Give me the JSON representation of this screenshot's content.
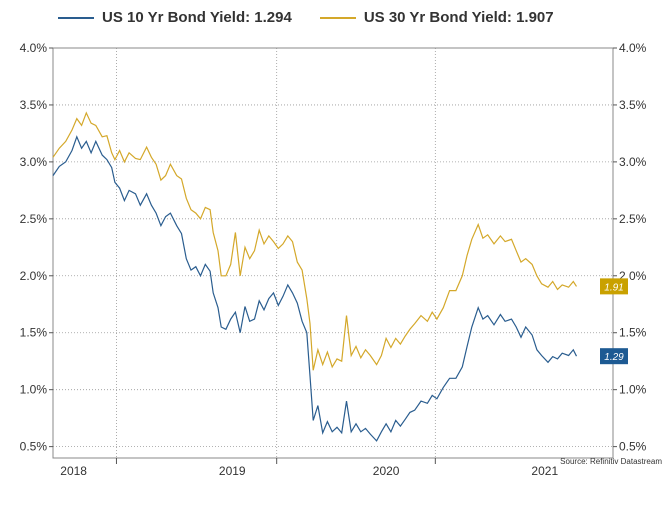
{
  "legend": {
    "s1_label": "US 10 Yr Bond Yield: 1.294",
    "s2_label": "US 30 Yr Bond Yield: 1.907"
  },
  "source_note": "Source: Refinitiv Datastream",
  "colors": {
    "s1": "#2a5d8f",
    "s2": "#d4a82a",
    "s1_tag": "#1d5a93",
    "s2_tag": "#c9a100",
    "grid": "#999999"
  },
  "chart_data": {
    "type": "line",
    "title": "",
    "xlabel": "",
    "ylabel": "",
    "x_tick_labels": [
      "2018",
      "2019",
      "2020",
      "2021"
    ],
    "y_tick_labels": [
      "4.0%",
      "3.5%",
      "3.0%",
      "2.5%",
      "2.0%",
      "1.5%",
      "1.0%",
      "0.5%"
    ],
    "y_tick_values": [
      4.0,
      3.5,
      3.0,
      2.5,
      2.0,
      1.5,
      1.0,
      0.5
    ],
    "ylim": [
      0.5,
      4.0
    ],
    "xlim": [
      2017.92,
      2021.45
    ],
    "year_boundaries": [
      2018.0,
      2019.0,
      2020.0,
      2021.0
    ],
    "grid": true,
    "legend_position": "top",
    "series": [
      {
        "name": "US 10 Yr Bond Yield: 1.294",
        "end_tag": "1.29",
        "points": [
          [
            2017.92,
            2.88
          ],
          [
            2017.96,
            2.96
          ],
          [
            2018.0,
            3.0
          ],
          [
            2018.04,
            3.1
          ],
          [
            2018.07,
            3.22
          ],
          [
            2018.1,
            3.12
          ],
          [
            2018.13,
            3.18
          ],
          [
            2018.16,
            3.08
          ],
          [
            2018.19,
            3.18
          ],
          [
            2018.23,
            3.06
          ],
          [
            2018.26,
            3.02
          ],
          [
            2018.29,
            2.95
          ],
          [
            2018.31,
            2.82
          ],
          [
            2018.34,
            2.77
          ],
          [
            2018.37,
            2.66
          ],
          [
            2018.4,
            2.75
          ],
          [
            2018.44,
            2.72
          ],
          [
            2018.47,
            2.62
          ],
          [
            2018.51,
            2.72
          ],
          [
            2018.54,
            2.62
          ],
          [
            2018.57,
            2.55
          ],
          [
            2018.6,
            2.44
          ],
          [
            2018.63,
            2.52
          ],
          [
            2018.66,
            2.55
          ],
          [
            2018.7,
            2.44
          ],
          [
            2018.73,
            2.37
          ],
          [
            2018.76,
            2.15
          ],
          [
            2018.79,
            2.05
          ],
          [
            2018.82,
            2.08
          ],
          [
            2018.85,
            2.0
          ],
          [
            2018.88,
            2.1
          ],
          [
            2018.91,
            2.04
          ],
          [
            2018.93,
            1.85
          ],
          [
            2018.96,
            1.72
          ],
          [
            2018.98,
            1.55
          ],
          [
            2019.01,
            1.53
          ],
          [
            2019.04,
            1.62
          ],
          [
            2019.07,
            1.68
          ],
          [
            2019.1,
            1.5
          ],
          [
            2019.13,
            1.73
          ],
          [
            2019.16,
            1.6
          ],
          [
            2019.19,
            1.62
          ],
          [
            2019.22,
            1.78
          ],
          [
            2019.25,
            1.7
          ],
          [
            2019.28,
            1.8
          ],
          [
            2019.31,
            1.85
          ],
          [
            2019.34,
            1.74
          ],
          [
            2019.37,
            1.82
          ],
          [
            2019.4,
            1.92
          ],
          [
            2019.43,
            1.85
          ],
          [
            2019.46,
            1.76
          ],
          [
            2019.49,
            1.6
          ],
          [
            2019.52,
            1.5
          ],
          [
            2019.54,
            1.12
          ],
          [
            2019.56,
            0.73
          ],
          [
            2019.59,
            0.86
          ],
          [
            2019.62,
            0.62
          ],
          [
            2019.65,
            0.72
          ],
          [
            2019.68,
            0.63
          ],
          [
            2019.71,
            0.67
          ],
          [
            2019.74,
            0.62
          ],
          [
            2019.77,
            0.9
          ],
          [
            2019.8,
            0.63
          ],
          [
            2019.83,
            0.7
          ],
          [
            2019.86,
            0.63
          ],
          [
            2019.89,
            0.66
          ],
          [
            2019.92,
            0.61
          ],
          [
            2019.96,
            0.55
          ],
          [
            2019.99,
            0.63
          ],
          [
            2020.02,
            0.7
          ],
          [
            2020.05,
            0.63
          ],
          [
            2020.08,
            0.73
          ],
          [
            2020.11,
            0.68
          ],
          [
            2020.14,
            0.74
          ],
          [
            2020.17,
            0.8
          ],
          [
            2020.2,
            0.82
          ],
          [
            2020.24,
            0.9
          ],
          [
            2020.28,
            0.88
          ],
          [
            2020.31,
            0.95
          ],
          [
            2020.34,
            0.92
          ],
          [
            2020.38,
            1.02
          ],
          [
            2020.42,
            1.1
          ],
          [
            2020.46,
            1.1
          ],
          [
            2020.5,
            1.2
          ],
          [
            2020.53,
            1.38
          ],
          [
            2020.56,
            1.55
          ],
          [
            2020.6,
            1.72
          ],
          [
            2020.63,
            1.62
          ],
          [
            2020.66,
            1.65
          ],
          [
            2020.7,
            1.57
          ],
          [
            2020.74,
            1.66
          ],
          [
            2020.77,
            1.6
          ],
          [
            2020.81,
            1.62
          ],
          [
            2020.84,
            1.55
          ],
          [
            2020.87,
            1.46
          ],
          [
            2020.9,
            1.55
          ],
          [
            2020.94,
            1.48
          ],
          [
            2020.97,
            1.35
          ],
          [
            2021.0,
            1.3
          ],
          [
            2021.04,
            1.24
          ],
          [
            2021.07,
            1.29
          ],
          [
            2021.1,
            1.27
          ],
          [
            2021.13,
            1.32
          ],
          [
            2021.17,
            1.3
          ],
          [
            2021.2,
            1.35
          ],
          [
            2021.22,
            1.294
          ]
        ]
      },
      {
        "name": "US 30 Yr Bond Yield: 1.907",
        "end_tag": "1.91",
        "points": [
          [
            2017.92,
            3.04
          ],
          [
            2017.96,
            3.12
          ],
          [
            2018.0,
            3.18
          ],
          [
            2018.04,
            3.28
          ],
          [
            2018.07,
            3.38
          ],
          [
            2018.1,
            3.32
          ],
          [
            2018.13,
            3.43
          ],
          [
            2018.16,
            3.34
          ],
          [
            2018.19,
            3.32
          ],
          [
            2018.23,
            3.22
          ],
          [
            2018.26,
            3.23
          ],
          [
            2018.29,
            3.08
          ],
          [
            2018.31,
            3.02
          ],
          [
            2018.34,
            3.1
          ],
          [
            2018.37,
            3.0
          ],
          [
            2018.4,
            3.08
          ],
          [
            2018.44,
            3.03
          ],
          [
            2018.47,
            3.02
          ],
          [
            2018.51,
            3.13
          ],
          [
            2018.54,
            3.04
          ],
          [
            2018.57,
            2.98
          ],
          [
            2018.6,
            2.84
          ],
          [
            2018.63,
            2.88
          ],
          [
            2018.66,
            2.98
          ],
          [
            2018.7,
            2.88
          ],
          [
            2018.73,
            2.85
          ],
          [
            2018.76,
            2.68
          ],
          [
            2018.79,
            2.58
          ],
          [
            2018.82,
            2.55
          ],
          [
            2018.85,
            2.5
          ],
          [
            2018.88,
            2.6
          ],
          [
            2018.91,
            2.58
          ],
          [
            2018.93,
            2.38
          ],
          [
            2018.96,
            2.22
          ],
          [
            2018.98,
            2.0
          ],
          [
            2019.01,
            2.0
          ],
          [
            2019.04,
            2.1
          ],
          [
            2019.07,
            2.38
          ],
          [
            2019.1,
            2.0
          ],
          [
            2019.13,
            2.25
          ],
          [
            2019.16,
            2.15
          ],
          [
            2019.19,
            2.22
          ],
          [
            2019.22,
            2.4
          ],
          [
            2019.25,
            2.28
          ],
          [
            2019.28,
            2.35
          ],
          [
            2019.31,
            2.3
          ],
          [
            2019.34,
            2.24
          ],
          [
            2019.37,
            2.28
          ],
          [
            2019.4,
            2.35
          ],
          [
            2019.43,
            2.3
          ],
          [
            2019.46,
            2.12
          ],
          [
            2019.49,
            2.05
          ],
          [
            2019.52,
            1.8
          ],
          [
            2019.54,
            1.58
          ],
          [
            2019.56,
            1.17
          ],
          [
            2019.59,
            1.35
          ],
          [
            2019.62,
            1.22
          ],
          [
            2019.65,
            1.33
          ],
          [
            2019.68,
            1.2
          ],
          [
            2019.71,
            1.27
          ],
          [
            2019.74,
            1.25
          ],
          [
            2019.77,
            1.65
          ],
          [
            2019.8,
            1.3
          ],
          [
            2019.83,
            1.38
          ],
          [
            2019.86,
            1.28
          ],
          [
            2019.89,
            1.35
          ],
          [
            2019.92,
            1.3
          ],
          [
            2019.96,
            1.22
          ],
          [
            2019.99,
            1.3
          ],
          [
            2020.02,
            1.45
          ],
          [
            2020.05,
            1.37
          ],
          [
            2020.08,
            1.45
          ],
          [
            2020.11,
            1.4
          ],
          [
            2020.14,
            1.47
          ],
          [
            2020.17,
            1.53
          ],
          [
            2020.2,
            1.58
          ],
          [
            2020.24,
            1.65
          ],
          [
            2020.28,
            1.6
          ],
          [
            2020.31,
            1.68
          ],
          [
            2020.34,
            1.62
          ],
          [
            2020.38,
            1.72
          ],
          [
            2020.42,
            1.87
          ],
          [
            2020.46,
            1.87
          ],
          [
            2020.5,
            2.0
          ],
          [
            2020.53,
            2.18
          ],
          [
            2020.56,
            2.32
          ],
          [
            2020.6,
            2.45
          ],
          [
            2020.63,
            2.33
          ],
          [
            2020.66,
            2.36
          ],
          [
            2020.7,
            2.28
          ],
          [
            2020.74,
            2.35
          ],
          [
            2020.77,
            2.3
          ],
          [
            2020.81,
            2.32
          ],
          [
            2020.84,
            2.22
          ],
          [
            2020.87,
            2.12
          ],
          [
            2020.9,
            2.15
          ],
          [
            2020.94,
            2.1
          ],
          [
            2020.97,
            2.0
          ],
          [
            2021.0,
            1.93
          ],
          [
            2021.04,
            1.9
          ],
          [
            2021.07,
            1.95
          ],
          [
            2021.1,
            1.88
          ],
          [
            2021.13,
            1.92
          ],
          [
            2021.17,
            1.9
          ],
          [
            2021.2,
            1.95
          ],
          [
            2021.22,
            1.907
          ]
        ]
      }
    ]
  }
}
